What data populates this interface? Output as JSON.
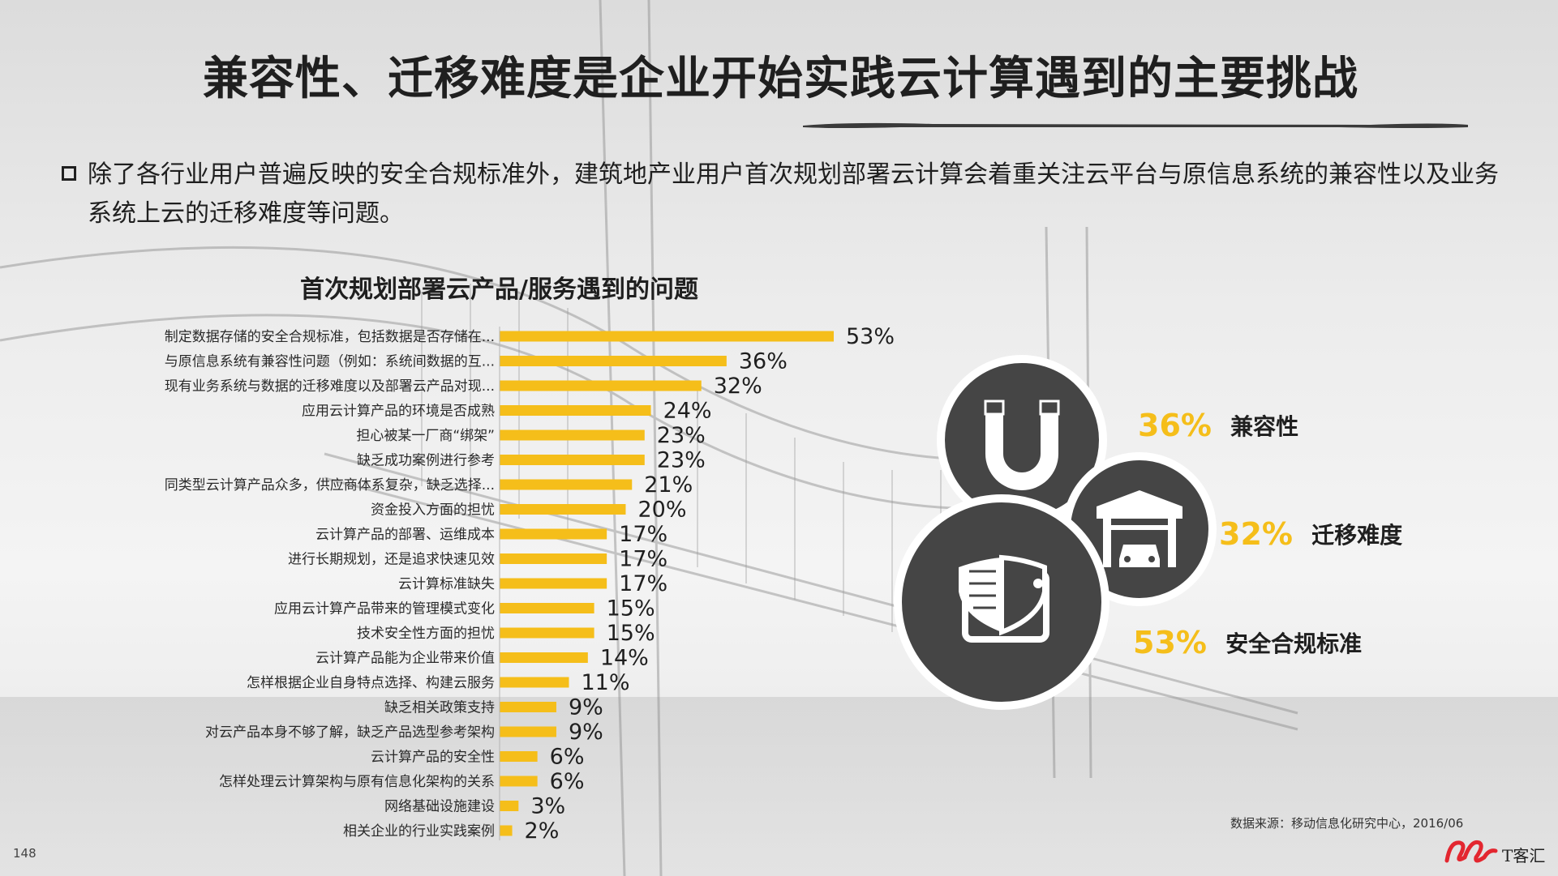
{
  "title": "兼容性、迁移难度是企业开始实践云计算遇到的主要挑战",
  "bullet_text": "除了各行业用户普遍反映的安全合规标准外，建筑地产业用户首次规划部署云计算会着重关注云平台与原信息系统的兼容性以及业务系统上云的迁移难度等问题。",
  "colors": {
    "bar": "#f5be1a",
    "circle": "#454545",
    "accent": "#f5be1a",
    "text": "#1f1f1f"
  },
  "chart_data": {
    "type": "bar",
    "orientation": "horizontal",
    "title": "首次规划部署云产品/服务遇到的问题",
    "categories": [
      "制定数据存储的安全合规标准，包括数据是否存储在...",
      "与原信息系统有兼容性问题（例如：系统间数据的互...",
      "现有业务系统与数据的迁移难度以及部署云产品对现...",
      "应用云计算产品的环境是否成熟",
      "担心被某一厂商“绑架”",
      "缺乏成功案例进行参考",
      "同类型云计算产品众多，供应商体系复杂，缺乏选择...",
      "资金投入方面的担忧",
      "云计算产品的部署、运维成本",
      "进行长期规划，还是追求快速见效",
      "云计算标准缺失",
      "应用云计算产品带来的管理模式变化",
      "技术安全性方面的担忧",
      "云计算产品能为企业带来价值",
      "怎样根据企业自身特点选择、构建云服务",
      "缺乏相关政策支持",
      "对云产品本身不够了解，缺乏产品选型参考架构",
      "云计算产品的安全性",
      "怎样处理云计算架构与原有信息化架构的关系",
      "网络基础设施建设",
      "相关企业的行业实践案例"
    ],
    "values": [
      53,
      36,
      32,
      24,
      23,
      23,
      21,
      20,
      17,
      17,
      17,
      15,
      15,
      14,
      11,
      9,
      9,
      6,
      6,
      3,
      2
    ],
    "value_labels": [
      "53%",
      "36%",
      "32%",
      "24%",
      "23%",
      "23%",
      "21%",
      "20%",
      "17%",
      "17%",
      "17%",
      "15%",
      "15%",
      "14%",
      "11%",
      "9%",
      "9%",
      "6%",
      "6%",
      "3%",
      "2%"
    ],
    "xlim": [
      0,
      53
    ]
  },
  "highlights": [
    {
      "percent": "36%",
      "label": "兼容性",
      "icon": "magnet-icon"
    },
    {
      "percent": "32%",
      "label": "迁移难度",
      "icon": "garage-car-icon"
    },
    {
      "percent": "53%",
      "label": "安全合规标准",
      "icon": "shield-window-icon"
    }
  ],
  "source": "数据来源：移动信息化研究中心，2016/06",
  "page_number": "148",
  "logo_text": "T客汇"
}
